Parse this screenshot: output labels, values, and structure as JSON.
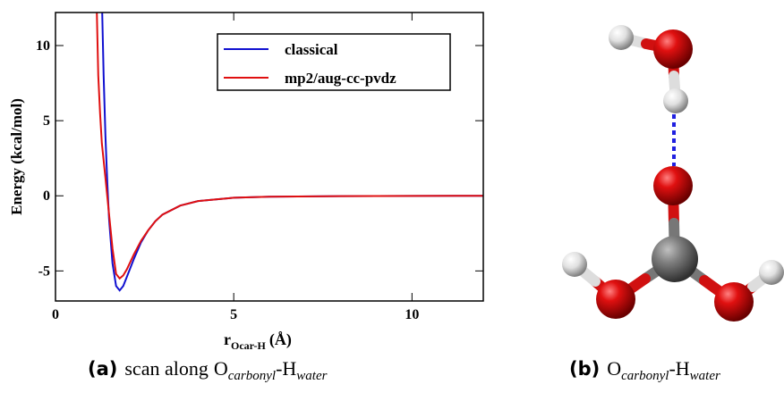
{
  "chart_data": {
    "type": "line",
    "y_label": "Energy (kcal/mol)",
    "x_label": {
      "main": "r",
      "sub": "Ocar-H",
      "unit": "(Å)"
    },
    "xlim": [
      0,
      12
    ],
    "ylim": [
      -7,
      12.2
    ],
    "xticks": [
      0,
      5,
      10
    ],
    "yticks": [
      -5,
      0,
      5,
      10
    ],
    "legend": "upper right",
    "series": [
      {
        "name": "classical",
        "color": "#1010d0",
        "x": [
          1.31,
          1.35,
          1.4,
          1.45,
          1.5,
          1.6,
          1.7,
          1.8,
          1.9,
          2.0,
          2.2,
          2.4,
          2.6,
          2.8,
          3.0,
          3.5,
          4,
          5,
          6,
          8,
          10,
          12
        ],
        "values": [
          12.2,
          8,
          4,
          1,
          -1.5,
          -4.5,
          -6,
          -6.3,
          -6,
          -5.4,
          -4.2,
          -3.1,
          -2.3,
          -1.7,
          -1.25,
          -0.65,
          -0.35,
          -0.13,
          -0.06,
          -0.02,
          -0.01,
          0
        ]
      },
      {
        "name": "mp2/aug-cc-pvdz",
        "color": "#e01010",
        "x": [
          1.16,
          1.2,
          1.25,
          1.3,
          1.4,
          1.5,
          1.6,
          1.7,
          1.8,
          1.9,
          2.0,
          2.2,
          2.4,
          2.6,
          2.8,
          3.0,
          3.5,
          4,
          5,
          6,
          8,
          10,
          12
        ],
        "values": [
          12.2,
          8,
          5.5,
          3.5,
          1.2,
          -1.2,
          -3.5,
          -5.2,
          -5.5,
          -5.3,
          -4.9,
          -3.9,
          -3.0,
          -2.3,
          -1.7,
          -1.25,
          -0.65,
          -0.35,
          -0.13,
          -0.06,
          -0.02,
          -0.01,
          0
        ]
      }
    ]
  },
  "captions": {
    "a": {
      "label": "(a)",
      "text": "scan along",
      "o": "O",
      "o_sub": "carbonyl",
      "h": "-H",
      "h_sub": "water"
    },
    "b": {
      "label": "(b)",
      "o": "O",
      "o_sub": "carbonyl",
      "h": "-H",
      "h_sub": "water"
    }
  }
}
